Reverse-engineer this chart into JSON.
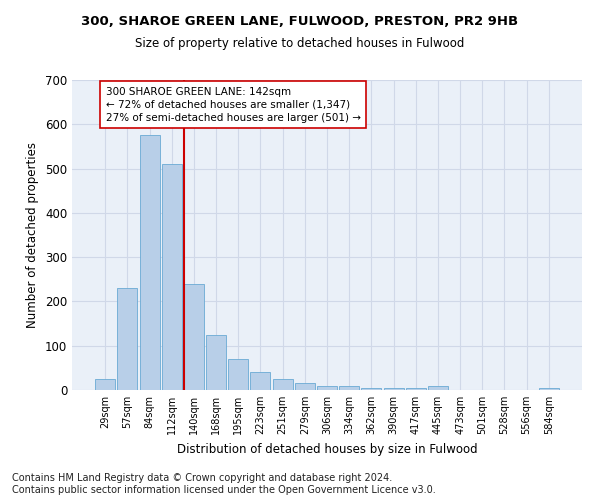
{
  "title_line1": "300, SHAROE GREEN LANE, FULWOOD, PRESTON, PR2 9HB",
  "title_line2": "Size of property relative to detached houses in Fulwood",
  "xlabel": "Distribution of detached houses by size in Fulwood",
  "ylabel": "Number of detached properties",
  "bar_labels": [
    "29sqm",
    "57sqm",
    "84sqm",
    "112sqm",
    "140sqm",
    "168sqm",
    "195sqm",
    "223sqm",
    "251sqm",
    "279sqm",
    "306sqm",
    "334sqm",
    "362sqm",
    "390sqm",
    "417sqm",
    "445sqm",
    "473sqm",
    "501sqm",
    "528sqm",
    "556sqm",
    "584sqm"
  ],
  "bar_values": [
    25,
    230,
    575,
    510,
    240,
    125,
    70,
    40,
    25,
    15,
    10,
    10,
    5,
    5,
    5,
    8,
    0,
    0,
    0,
    0,
    5
  ],
  "bar_color": "#b8cfe8",
  "bar_edge_color": "#6aaad4",
  "vline_color": "#cc0000",
  "annotation_text": "300 SHAROE GREEN LANE: 142sqm\n← 72% of detached houses are smaller (1,347)\n27% of semi-detached houses are larger (501) →",
  "annotation_box_color": "#ffffff",
  "annotation_box_edge": "#cc0000",
  "ylim": [
    0,
    700
  ],
  "yticks": [
    0,
    100,
    200,
    300,
    400,
    500,
    600,
    700
  ],
  "grid_color": "#d0d8e8",
  "bg_color": "#eaf0f8",
  "footnote": "Contains HM Land Registry data © Crown copyright and database right 2024.\nContains public sector information licensed under the Open Government Licence v3.0.",
  "footnote_fontsize": 7
}
